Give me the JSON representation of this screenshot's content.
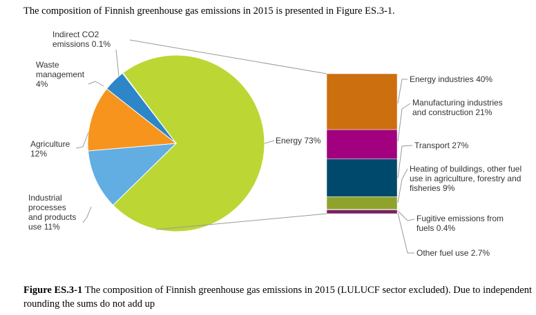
{
  "intro": "The composition of Finnish greenhouse gas emissions in 2015 is presented in Figure ES.3-1.",
  "caption_label": "Figure ES.3-1",
  "caption_text": "The composition of Finnish greenhouse gas emissions in 2015 (LULUCF sector excluded). Due to independent rounding the sums do not add up",
  "chart_data": {
    "type": "pie",
    "categories": [
      "Energy",
      "Industrial processes and products use",
      "Agriculture",
      "Waste management",
      "Indirect CO2 emissions"
    ],
    "values": [
      73,
      11,
      12,
      4,
      0.1
    ],
    "value_labels": [
      "73%",
      "11%",
      "12%",
      "4%",
      "0.1%"
    ],
    "colors": [
      "#bcd634",
      "#62aee3",
      "#f7941d",
      "#2d86c8",
      "#1f5f99"
    ],
    "breakdown": {
      "type": "bar",
      "categories": [
        "Energy industries",
        "Manufacturing industries and construction",
        "Transport",
        "Heating of buildings, other fuel use in agriculture, forestry and fisheries",
        "Fugitive emissions from fuels",
        "Other fuel use"
      ],
      "values": [
        40,
        21,
        27,
        9,
        0.4,
        2.7
      ],
      "value_labels": [
        "40%",
        "21%",
        "27%",
        "9%",
        "0.4%",
        "2.7%"
      ],
      "colors": [
        "#cc6f0e",
        "#a1007f",
        "#00496c",
        "#8fa32c",
        "#4f7f9a",
        "#7a1f5e"
      ]
    }
  }
}
